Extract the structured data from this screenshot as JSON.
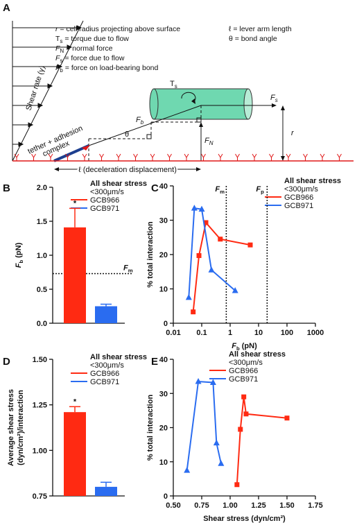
{
  "diagram": {
    "panel": "A",
    "shear_rate": "Shear rate (γ)",
    "definitions": [
      {
        "sym": "r",
        "text": " = cell radius projecting above surface"
      },
      {
        "sym": "T",
        "sub": "s",
        "text": " = torque due to flow"
      },
      {
        "sym": "F",
        "sub": "N",
        "text": " = normal force"
      },
      {
        "sym": "F",
        "sub": "s",
        "text": " = force due to flow"
      },
      {
        "sym": "F",
        "sub": "b",
        "text": " = force on load-bearing bond"
      },
      {
        "sym": "ℓ",
        "text": " = lever arm length"
      },
      {
        "sym": "θ",
        "text": " = bond angle"
      }
    ],
    "torque": {
      "sym": "T",
      "sub": "s"
    },
    "flow_force": {
      "sym": "F",
      "sub": "s"
    },
    "bond_force": {
      "sym": "F",
      "sub": "b"
    },
    "normal_force": {
      "sym": "F",
      "sub": "N"
    },
    "radius": "r",
    "angle": "θ",
    "tether": [
      "tether + adhesion",
      "complex"
    ],
    "displacement": "ℓ (deceleration displacement)"
  },
  "chart_data": [
    {
      "type": "bar",
      "panel": "B",
      "ylabel": {
        "sym": "F",
        "sub": "b",
        "text": " (pN)"
      },
      "legend_title": [
        "All shear stress",
        "<300μm/s"
      ],
      "series": [
        {
          "name": "GCB966",
          "color": "#ff2a12",
          "values": [
            1.41
          ],
          "errors": [
            0.28
          ],
          "annotation": "*"
        },
        {
          "name": "GCB971",
          "color": "#2a6cf0",
          "values": [
            0.25
          ],
          "errors": [
            0.03
          ]
        }
      ],
      "ylim": [
        0,
        2.0
      ],
      "yticks": [
        {
          "value": 0,
          "label": "0.0"
        },
        0.5,
        {
          "value": 1,
          "label": "1.0"
        },
        1.5,
        {
          "value": 2,
          "label": "2.0"
        }
      ],
      "reference_lines": [
        {
          "value": 0.73,
          "label": {
            "sym": "F",
            "sub": "m"
          }
        }
      ]
    },
    {
      "type": "line",
      "panel": "C",
      "ylabel": "% total interaction",
      "xlabel": {
        "sym": "F",
        "sub": "b",
        "text": " (pN)"
      },
      "legend_title": [
        "All shear stress",
        "<300μm/s"
      ],
      "xscale": "log",
      "series": [
        {
          "name": "GCB966",
          "color": "#ff2a12",
          "marker": "square",
          "x": [
            0.05,
            0.08,
            0.14,
            0.45,
            5.1
          ],
          "values": [
            3.3,
            19.7,
            29.3,
            24.5,
            22.8
          ]
        },
        {
          "name": "GCB971",
          "color": "#2a6cf0",
          "marker": "triangle",
          "x": [
            0.035,
            0.055,
            0.1,
            0.22,
            1.5
          ],
          "values": [
            7.5,
            33.5,
            33.2,
            15.5,
            9.5
          ]
        }
      ],
      "xlim": [
        0.01,
        1000
      ],
      "xticks": [
        0.01,
        0.1,
        1,
        10,
        100,
        1000
      ],
      "ylim": [
        0,
        40
      ],
      "yticks": [
        0,
        10,
        20,
        30,
        40
      ],
      "reference_lines": [
        {
          "value": 0.73,
          "label": {
            "sym": "F",
            "sub": "m"
          }
        },
        {
          "value": 20,
          "label": {
            "sym": "F",
            "sub": "p"
          }
        }
      ]
    },
    {
      "type": "bar",
      "panel": "D",
      "ylabel": [
        "Average shear stress",
        "(dyn/cm²)/interaction"
      ],
      "legend_title": [
        "All shear stress",
        "<300μm/s"
      ],
      "series": [
        {
          "name": "GCB966",
          "color": "#ff2a12",
          "values": [
            1.21
          ],
          "errors": [
            0.03
          ],
          "annotation": "*"
        },
        {
          "name": "GCB971",
          "color": "#2a6cf0",
          "values": [
            0.8
          ],
          "errors": [
            0.025
          ]
        }
      ],
      "ylim": [
        0.75,
        1.5
      ],
      "yticks": [
        0.75,
        {
          "value": 1,
          "label": "1.00"
        },
        1.25,
        {
          "value": 1.5,
          "label": "1.50"
        }
      ]
    },
    {
      "type": "line",
      "panel": "E",
      "ylabel": "% total interaction",
      "xlabel": "Shear stress (dyn/cm²)",
      "legend_title": [
        "All shear stress",
        "<300μm/s"
      ],
      "series": [
        {
          "name": "GCB966",
          "color": "#ff2a12",
          "marker": "square",
          "x": [
            1.06,
            1.09,
            1.12,
            1.14,
            1.5
          ],
          "values": [
            3.3,
            19.5,
            29,
            24,
            22.8
          ]
        },
        {
          "name": "GCB971",
          "color": "#2a6cf0",
          "marker": "triangle",
          "x": [
            0.62,
            0.72,
            0.85,
            0.88,
            0.92
          ],
          "values": [
            7.5,
            33.5,
            33.2,
            15.5,
            9.5
          ]
        }
      ],
      "xlim": [
        0.5,
        1.75
      ],
      "xticks": [
        {
          "value": 0.5,
          "label": "0.50"
        },
        0.75,
        {
          "value": 1,
          "label": "1.00"
        },
        1.25,
        {
          "value": 1.5,
          "label": "1.50"
        },
        1.75
      ],
      "ylim": [
        0,
        40
      ],
      "yticks": [
        0,
        10,
        20,
        30,
        40
      ]
    }
  ]
}
